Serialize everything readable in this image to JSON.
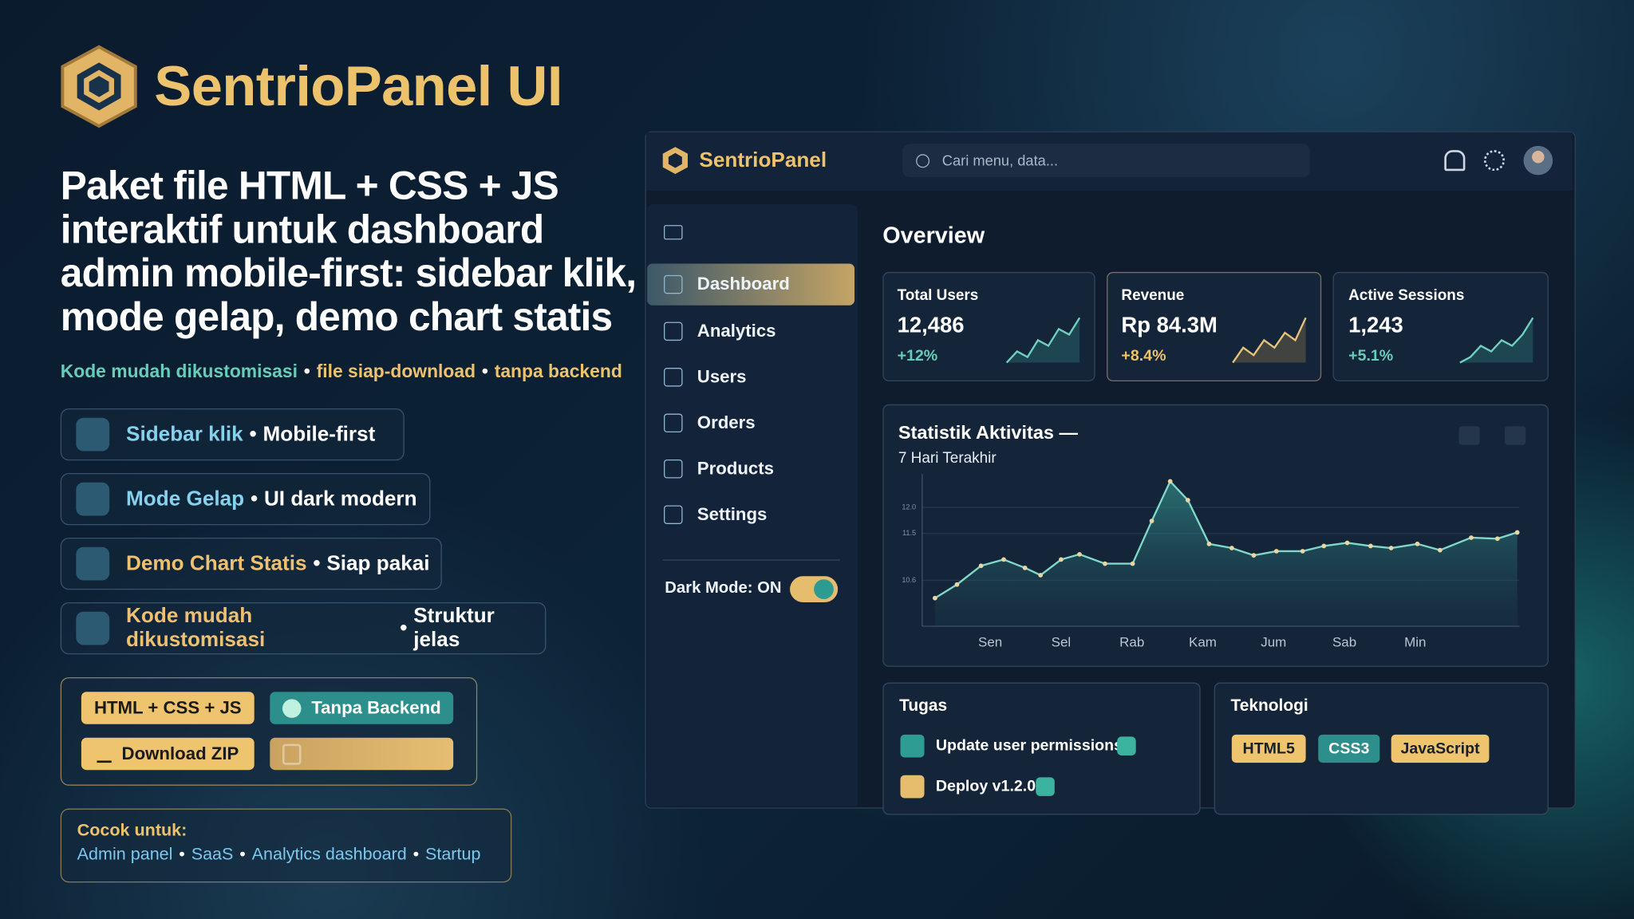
{
  "hero": {
    "brand": "SentrioPanel UI",
    "headline": "Paket file HTML + CSS + JS interaktif untuk dashboard admin mobile-first: sidebar klik, mode gelap, demo chart statis",
    "separator": "•",
    "tagline": [
      "Kode mudah dikustomisasi",
      "file siap-download",
      "tanpa backend"
    ]
  },
  "features": [
    {
      "title": "Sidebar klik",
      "detail": "Mobile-first"
    },
    {
      "title": "Mode Gelap",
      "detail": "UI dark modern"
    },
    {
      "title": "Demo Chart Statis",
      "detail": "Siap pakai"
    },
    {
      "title": "Kode mudah dikustomisasi",
      "detail": "Struktur jelas"
    }
  ],
  "badges": [
    "HTML + CSS + JS",
    "Tanpa Backend",
    "Download ZIP"
  ],
  "fit": {
    "label": "Cocok untuk:",
    "items": [
      "Admin panel",
      "SaaS",
      "Analytics dashboard",
      "Startup"
    ]
  },
  "app": {
    "brand": "SentrioPanel",
    "search_placeholder": "Cari menu, data...",
    "nav": [
      "Dashboard",
      "Analytics",
      "Users",
      "Orders",
      "Products",
      "Settings"
    ],
    "dark_mode": "Dark Mode: ON",
    "overview": "Overview",
    "kpis": [
      {
        "label": "Total Users",
        "value": "12,486",
        "change": "+12%",
        "spark": [
          2,
          4,
          3,
          6,
          5,
          8,
          7,
          10
        ]
      },
      {
        "label": "Revenue",
        "value": "Rp 84.3M",
        "change": "+8.4%",
        "spark": [
          2,
          4,
          3,
          5,
          4,
          6,
          5,
          8
        ]
      },
      {
        "label": "Active Sessions",
        "value": "1,243",
        "change": "+5.1%",
        "spark": [
          2,
          3,
          5,
          4,
          6,
          5,
          7,
          10
        ]
      }
    ],
    "tasks": {
      "title": "Tugas",
      "items": [
        "Update user permissions",
        "Deploy v1.2.0"
      ]
    },
    "tech": {
      "title": "Teknologi",
      "items": [
        "HTML5",
        "CSS3",
        "JavaScript"
      ]
    }
  },
  "chart_data": {
    "type": "line",
    "title": "Statistik Aktivitas —",
    "subtitle": "7 Hari Terakhir",
    "x": [
      -0.78,
      -0.47,
      -0.13,
      0.19,
      0.49,
      0.71,
      1.0,
      1.26,
      1.62,
      2.01,
      2.28,
      2.54,
      2.79,
      3.09,
      3.41,
      3.72,
      4.04,
      4.41,
      4.71,
      5.04,
      5.37,
      5.66,
      6.03,
      6.35,
      6.79,
      7.16,
      7.44
    ],
    "values": [
      10.26,
      10.52,
      10.88,
      11.0,
      10.84,
      10.7,
      11.0,
      11.1,
      10.92,
      10.92,
      11.74,
      12.5,
      12.14,
      11.3,
      11.22,
      11.08,
      11.16,
      11.16,
      11.26,
      11.32,
      11.26,
      11.22,
      11.3,
      11.18,
      11.42,
      11.4,
      11.52
    ],
    "color": "#7fd8c8",
    "xlim": [
      -0.96,
      7.47
    ],
    "xticks": [
      {
        "value": 0,
        "label": "Sen"
      },
      {
        "value": 1,
        "label": "Sel"
      },
      {
        "value": 2,
        "label": "Rab"
      },
      {
        "value": 3,
        "label": "Kam"
      },
      {
        "value": 4,
        "label": "Jum"
      },
      {
        "value": 5,
        "label": "Sab"
      },
      {
        "value": 6,
        "label": "Min"
      }
    ],
    "ylim": [
      9.72,
      12.64
    ],
    "yticks": [
      {
        "value": 12,
        "label": "12.0"
      },
      11.5,
      10.6
    ],
    "grid": true
  }
}
